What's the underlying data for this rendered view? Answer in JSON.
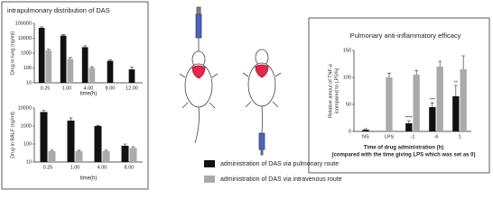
{
  "panel_title": "intrapulmonary distribution of DAS",
  "legend": [
    {
      "name": "administration of DAS via pulmonary route",
      "color": "#111111"
    },
    {
      "name": "administration of DAS via intravenous route",
      "color": "#aaaaaa"
    }
  ],
  "chart_data": [
    {
      "type": "bar",
      "y_label": "Drug in lung (ng/ml)",
      "x_label": "time(h)",
      "categories": [
        "0.25",
        "1.00",
        "4.00",
        "8.00",
        "12.00"
      ],
      "log_scale": true,
      "ylim": [
        10,
        100000
      ],
      "yticks": [
        10,
        100,
        1000,
        10000,
        100000
      ],
      "series": [
        {
          "color": "#111111",
          "values": [
            50000,
            15000,
            2500,
            300,
            80
          ],
          "errors": [
            8000,
            3000,
            600,
            50,
            30
          ]
        },
        {
          "color": "#aaaaaa",
          "values": [
            1500,
            400,
            100,
            null,
            null
          ],
          "errors": [
            300,
            100,
            20,
            null,
            null
          ]
        }
      ]
    },
    {
      "type": "bar",
      "y_label": "Drug in BALF (ng/ml)",
      "x_label": "time(h)",
      "categories": [
        "0.25",
        "1.00",
        "4.00",
        "8.00"
      ],
      "log_scale": true,
      "ylim": [
        10,
        10000
      ],
      "yticks": [
        10,
        100,
        1000,
        10000
      ],
      "series": [
        {
          "color": "#111111",
          "values": [
            6000,
            2000,
            1000,
            80
          ],
          "errors": [
            1500,
            800,
            100,
            20
          ]
        },
        {
          "color": "#aaaaaa",
          "values": [
            40,
            40,
            40,
            60
          ],
          "errors": [
            5,
            5,
            5,
            10
          ]
        }
      ]
    },
    {
      "type": "bar",
      "title": "Pulmonary anti-inflammatory efficacy",
      "y_label": [
        "Relative amout of TNF-α",
        "(compared to LPS%)"
      ],
      "x_label": [
        "Time of drug administration (h)",
        "(compared with the time giving LPS which was set as 0)"
      ],
      "categories": [
        "NS",
        "LPS",
        "-1",
        "-6",
        "1"
      ],
      "log_scale": false,
      "ylim": [
        0,
        150
      ],
      "yticks": [
        0,
        50,
        100,
        150
      ],
      "series": [
        {
          "color": "#111111",
          "values": [
            3,
            null,
            15,
            45,
            65
          ],
          "errors": [
            2,
            null,
            5,
            8,
            20
          ],
          "markers": [
            null,
            null,
            "****",
            "***",
            "**"
          ]
        },
        {
          "color": "#aaaaaa",
          "values": [
            null,
            100,
            105,
            120,
            115
          ],
          "errors": [
            null,
            8,
            8,
            10,
            25
          ]
        }
      ]
    }
  ]
}
